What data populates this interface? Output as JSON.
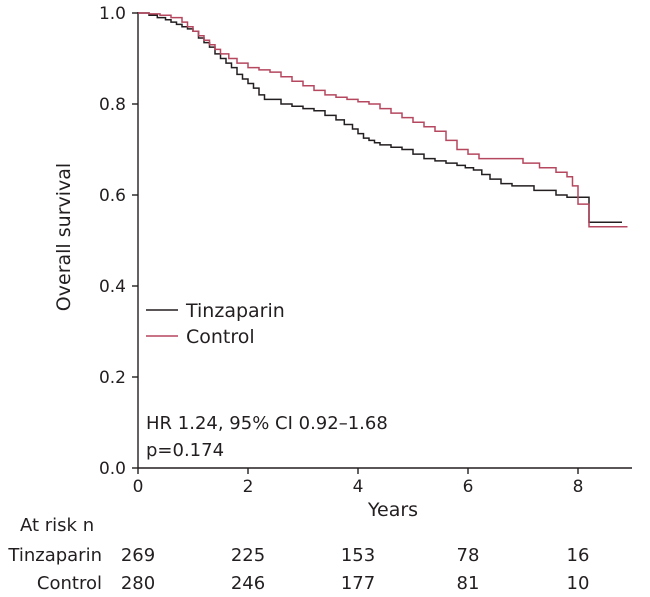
{
  "chart_data": {
    "type": "line",
    "subtype": "kaplan-meier",
    "title": "",
    "xlabel": "Years",
    "ylabel": "Overall survival",
    "xlim": [
      0,
      9
    ],
    "ylim": [
      0,
      1.0
    ],
    "x_ticks": [
      0,
      2,
      4,
      6,
      8
    ],
    "y_ticks": [
      0.0,
      0.2,
      0.4,
      0.6,
      0.8,
      1.0
    ],
    "y_tick_labels": [
      "0.0",
      "0.2",
      "0.4",
      "0.6",
      "0.8",
      "1.0"
    ],
    "grid": false,
    "legend": "middle-left",
    "annotations": [
      "HR 1.24, 95% CI 0.92–1.68",
      "p=0.174"
    ],
    "series": [
      {
        "name": "Tinzaparin",
        "color": "#231f20",
        "x": [
          0,
          0.2,
          0.35,
          0.5,
          0.6,
          0.7,
          0.8,
          0.9,
          1.0,
          1.1,
          1.2,
          1.3,
          1.4,
          1.5,
          1.6,
          1.7,
          1.8,
          1.9,
          2.0,
          2.1,
          2.2,
          2.3,
          2.45,
          2.6,
          2.8,
          3.0,
          3.2,
          3.4,
          3.6,
          3.75,
          3.9,
          4.0,
          4.1,
          4.2,
          4.3,
          4.4,
          4.6,
          4.8,
          5.0,
          5.2,
          5.4,
          5.6,
          5.8,
          5.95,
          6.1,
          6.25,
          6.4,
          6.6,
          6.8,
          7.0,
          7.2,
          7.4,
          7.6,
          7.8,
          8.0,
          8.1,
          8.2,
          8.4,
          8.8
        ],
        "y": [
          1.0,
          0.995,
          0.99,
          0.985,
          0.98,
          0.975,
          0.97,
          0.965,
          0.96,
          0.945,
          0.935,
          0.925,
          0.91,
          0.9,
          0.89,
          0.88,
          0.865,
          0.855,
          0.845,
          0.835,
          0.82,
          0.81,
          0.81,
          0.8,
          0.795,
          0.79,
          0.785,
          0.775,
          0.765,
          0.755,
          0.745,
          0.735,
          0.725,
          0.72,
          0.715,
          0.71,
          0.705,
          0.7,
          0.69,
          0.68,
          0.675,
          0.67,
          0.665,
          0.66,
          0.655,
          0.645,
          0.635,
          0.625,
          0.62,
          0.62,
          0.61,
          0.61,
          0.6,
          0.595,
          0.595,
          0.595,
          0.54,
          0.54,
          0.54
        ]
      },
      {
        "name": "Control",
        "color": "#b5475f",
        "x": [
          0,
          0.2,
          0.4,
          0.6,
          0.8,
          0.9,
          1.0,
          1.1,
          1.2,
          1.3,
          1.4,
          1.5,
          1.65,
          1.8,
          2.0,
          2.2,
          2.4,
          2.6,
          2.8,
          3.0,
          3.2,
          3.4,
          3.6,
          3.8,
          4.0,
          4.2,
          4.4,
          4.6,
          4.8,
          5.0,
          5.2,
          5.4,
          5.6,
          5.8,
          6.0,
          6.2,
          6.5,
          6.8,
          7.0,
          7.3,
          7.6,
          7.8,
          7.9,
          8.0,
          8.2,
          8.9
        ],
        "y": [
          1.0,
          0.998,
          0.995,
          0.99,
          0.98,
          0.97,
          0.96,
          0.95,
          0.94,
          0.93,
          0.92,
          0.91,
          0.9,
          0.89,
          0.88,
          0.875,
          0.87,
          0.86,
          0.85,
          0.84,
          0.83,
          0.82,
          0.815,
          0.81,
          0.805,
          0.8,
          0.79,
          0.78,
          0.77,
          0.76,
          0.75,
          0.74,
          0.72,
          0.7,
          0.69,
          0.68,
          0.68,
          0.68,
          0.67,
          0.66,
          0.65,
          0.64,
          0.62,
          0.58,
          0.53,
          0.53
        ]
      }
    ]
  },
  "at_risk": {
    "title": "At risk n",
    "rows": [
      {
        "label": "Tinzaparin",
        "values": [
          "269",
          "225",
          "153",
          "78",
          "16"
        ]
      },
      {
        "label": "Control",
        "values": [
          "280",
          "246",
          "177",
          "81",
          "10"
        ]
      }
    ]
  }
}
